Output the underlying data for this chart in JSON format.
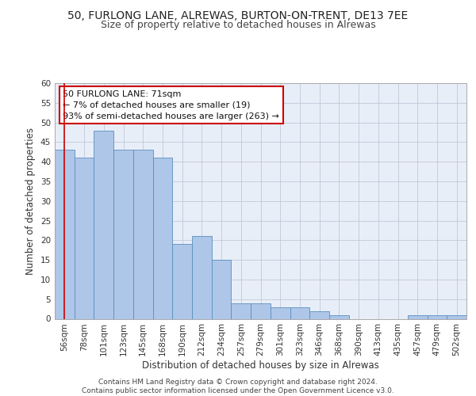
{
  "title_line1": "50, FURLONG LANE, ALREWAS, BURTON-ON-TRENT, DE13 7EE",
  "title_line2": "Size of property relative to detached houses in Alrewas",
  "xlabel": "Distribution of detached houses by size in Alrewas",
  "ylabel": "Number of detached properties",
  "categories": [
    "56sqm",
    "78sqm",
    "101sqm",
    "123sqm",
    "145sqm",
    "168sqm",
    "190sqm",
    "212sqm",
    "234sqm",
    "257sqm",
    "279sqm",
    "301sqm",
    "323sqm",
    "346sqm",
    "368sqm",
    "390sqm",
    "413sqm",
    "435sqm",
    "457sqm",
    "479sqm",
    "502sqm"
  ],
  "values": [
    43,
    41,
    48,
    43,
    43,
    41,
    19,
    21,
    15,
    4,
    4,
    3,
    3,
    2,
    1,
    0,
    0,
    0,
    1,
    1,
    1
  ],
  "bar_color": "#aec6e8",
  "bar_edge_color": "#5a8fc0",
  "background_color": "#e8eef8",
  "grid_color": "#c0c8d8",
  "vline_x": 0,
  "vline_color": "#cc0000",
  "annotation_text": "50 FURLONG LANE: 71sqm\n← 7% of detached houses are smaller (19)\n93% of semi-detached houses are larger (263) →",
  "annotation_box_color": "#ffffff",
  "annotation_box_edge": "#cc0000",
  "ylim": [
    0,
    60
  ],
  "yticks": [
    0,
    5,
    10,
    15,
    20,
    25,
    30,
    35,
    40,
    45,
    50,
    55,
    60
  ],
  "footer_text": "Contains HM Land Registry data © Crown copyright and database right 2024.\nContains public sector information licensed under the Open Government Licence v3.0.",
  "title_fontsize": 10,
  "subtitle_fontsize": 9,
  "axis_label_fontsize": 8.5,
  "tick_fontsize": 7.5,
  "annotation_fontsize": 8,
  "footer_fontsize": 6.5
}
